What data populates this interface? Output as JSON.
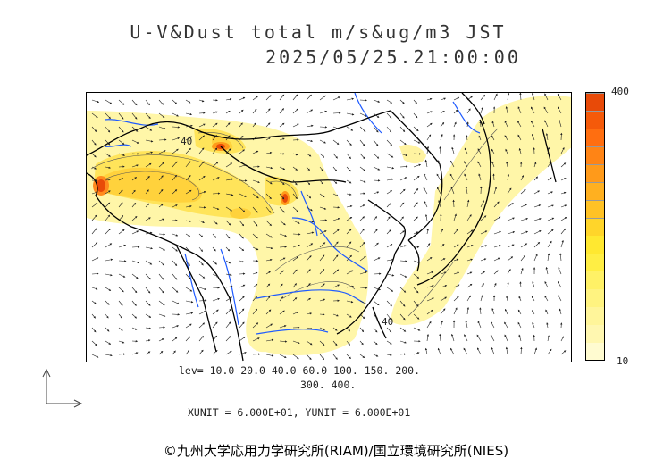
{
  "title": {
    "line1": "U-V&Dust total m/s&ug/m3 JST",
    "line2": "2025/05/25.21:00:00"
  },
  "legend": {
    "max_label": "400",
    "min_label": "10",
    "colors": [
      "#fffbd0",
      "#fff7b0",
      "#fff59a",
      "#fff380",
      "#fff166",
      "#ffee44",
      "#ffe830",
      "#ffd52a",
      "#ffc225",
      "#ffb020",
      "#ff9a1a",
      "#ff8415",
      "#ff6e10",
      "#f55a0a",
      "#e84a08"
    ]
  },
  "levels": {
    "line1": "lev= 10.0 20.0 40.0 60.0 100. 150. 200.",
    "line2": "300. 400."
  },
  "units": "XUNIT = 6.000E+01, YUNIT = 6.000E+01",
  "contour_labels": [
    "40",
    "40"
  ],
  "credit": "©九州大学応用力学研究所(RIAM)/国立環境研究所(NIES)",
  "icons": [
    "wind-vector-arrow",
    "reference-vector-arrow"
  ],
  "colors": {
    "dust_light": "#fff6a8",
    "dust_mid": "#ffe45a",
    "dust_high": "#ff8a1e",
    "dust_peak": "#e84a08",
    "rivers": "#1f5bff",
    "coast": "#000000"
  }
}
